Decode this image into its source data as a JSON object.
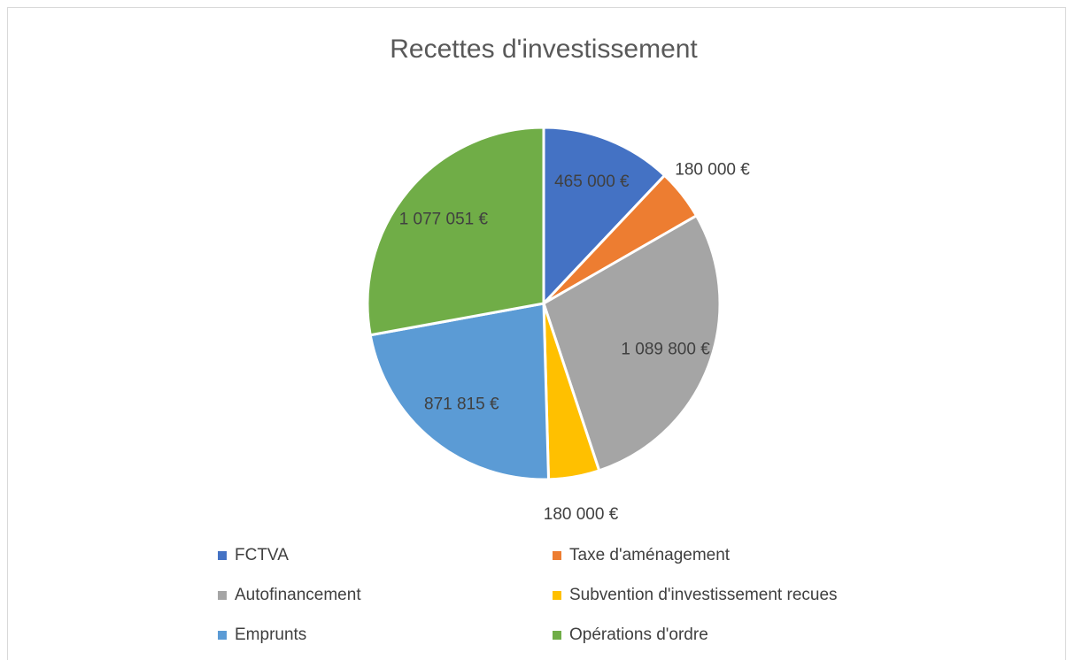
{
  "chart_data": {
    "type": "pie",
    "title": "Recettes d'investissement",
    "categories": [
      "FCTVA",
      "Taxe d'aménagement",
      "Autofinancement",
      "Subvention d'investissement recues",
      "Emprunts",
      "Opérations d'ordre"
    ],
    "values": [
      465000,
      180000,
      1089800,
      180000,
      871815,
      1077051
    ],
    "value_labels": [
      "465 000 €",
      "180 000 €",
      "1 089 800 €",
      "180 000 €",
      "871 815 €",
      "1 077 051 €"
    ],
    "colors": [
      "#4472c4",
      "#ed7d31",
      "#a5a5a5",
      "#ffc000",
      "#5b9bd5",
      "#70ad47"
    ],
    "legend": "bottom"
  }
}
